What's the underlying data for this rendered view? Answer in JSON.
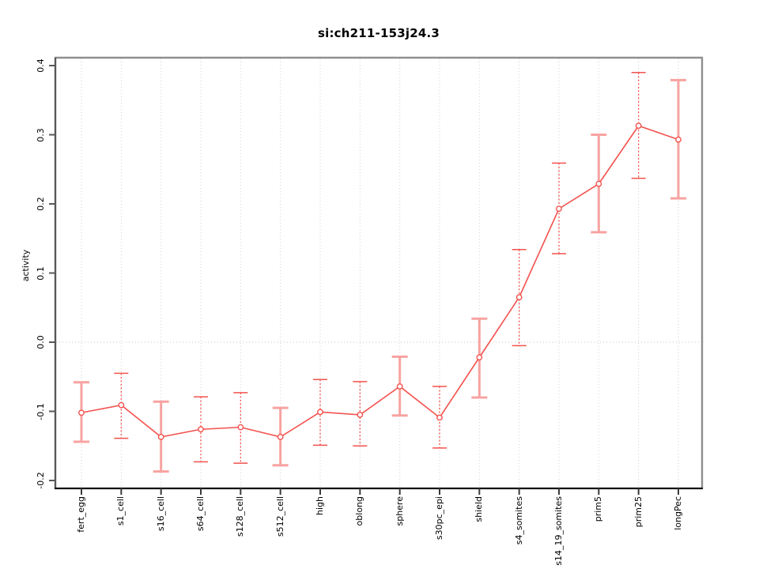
{
  "window": {
    "background": "#ffffff"
  },
  "chart_data": {
    "type": "line",
    "title": "si:ch211-153j24.3",
    "xlabel": "",
    "ylabel": "activity",
    "categories": [
      "fert_egg",
      "s1_cell",
      "s16_cell",
      "s64_cell",
      "s128_cell",
      "s512_cell",
      "high",
      "oblong",
      "sphere",
      "s30pc_epi",
      "shield",
      "s4_somites",
      "s14_19_somites",
      "prim5",
      "prim25",
      "longPec"
    ],
    "series": [
      {
        "name": "activity",
        "values": [
          -0.102,
          -0.091,
          -0.137,
          -0.126,
          -0.123,
          -0.137,
          -0.101,
          -0.105,
          -0.064,
          -0.109,
          -0.022,
          0.065,
          0.193,
          0.229,
          0.313,
          0.293
        ],
        "upper": [
          -0.058,
          -0.045,
          -0.086,
          -0.079,
          -0.073,
          -0.095,
          -0.054,
          -0.057,
          -0.021,
          -0.064,
          0.034,
          0.134,
          0.259,
          0.3,
          0.39,
          0.379
        ],
        "lower": [
          -0.144,
          -0.139,
          -0.187,
          -0.173,
          -0.175,
          -0.178,
          -0.149,
          -0.15,
          -0.106,
          -0.153,
          -0.08,
          -0.005,
          0.128,
          0.159,
          0.237,
          0.208
        ]
      }
    ],
    "error_bar_styles": [
      "solid",
      "dashed",
      "solid",
      "dashed",
      "dashed",
      "solid",
      "dashed",
      "dashed",
      "solid",
      "dashed",
      "solid",
      "dashed",
      "dashed",
      "solid",
      "dashed",
      "solid"
    ],
    "yticks": [
      -0.2,
      -0.1,
      0.0,
      0.1,
      0.2,
      0.3,
      0.4
    ],
    "ytick_labels": [
      "-0.2",
      "-0.1",
      "0.0",
      "0.1",
      "0.2",
      "0.3",
      "0.4"
    ],
    "ylim": [
      -0.211,
      0.411
    ],
    "grid": "vertical dotted lines at each category + dotted horizontal line at y=0",
    "legend": "none",
    "marker": "open-circle",
    "colors": {
      "line": "#f3524e",
      "error_bar_pink": "#f7a3a1",
      "grid": "#d2d2d2",
      "zero_line": "#c6c6c6",
      "frame_top_right": "#8f8f8f",
      "axis_left": "#585858",
      "axis_bottom": "#141414",
      "text": "#000000"
    }
  }
}
